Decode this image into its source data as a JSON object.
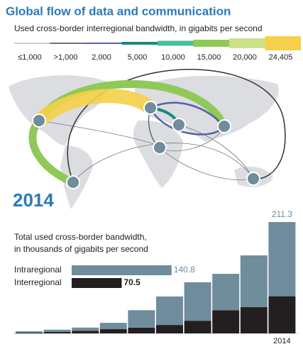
{
  "header": {
    "title": "Global flow of data and communication",
    "subtitle": "Used cross-border interregional bandwidth, in gigabits per second"
  },
  "flow_legend": {
    "labels": [
      "≤1,000",
      ">1,000",
      "2,000",
      "5,000",
      "10,000",
      "15,000",
      "20,000",
      "24,405"
    ],
    "colors": [
      "#9a9a9a",
      "#444444",
      "#5560a8",
      "#178a7c",
      "#4cbf9a",
      "#8fc957",
      "#cde08a",
      "#f5d04a"
    ]
  },
  "year": "2014",
  "chart_data": {
    "type": "bar",
    "stacked": true,
    "title": "Total used cross-border bandwidth,",
    "subtitle": "in thousands of gigabits per second",
    "categories": [
      null,
      null,
      null,
      null,
      null,
      null,
      null,
      null,
      null,
      "2014"
    ],
    "series": [
      {
        "name": "Interregional",
        "color": "#231f20",
        "values": [
          1.5,
          3,
          5,
          8,
          11,
          16,
          24,
          44,
          50,
          70.5
        ],
        "legend_value": 70.5
      },
      {
        "name": "Intraregional",
        "color": "#6f8d9c",
        "values": [
          2.5,
          4,
          6,
          12,
          33,
          54,
          73,
          69,
          98,
          140.8
        ],
        "legend_value": 140.8
      }
    ],
    "total": 211.3
  }
}
